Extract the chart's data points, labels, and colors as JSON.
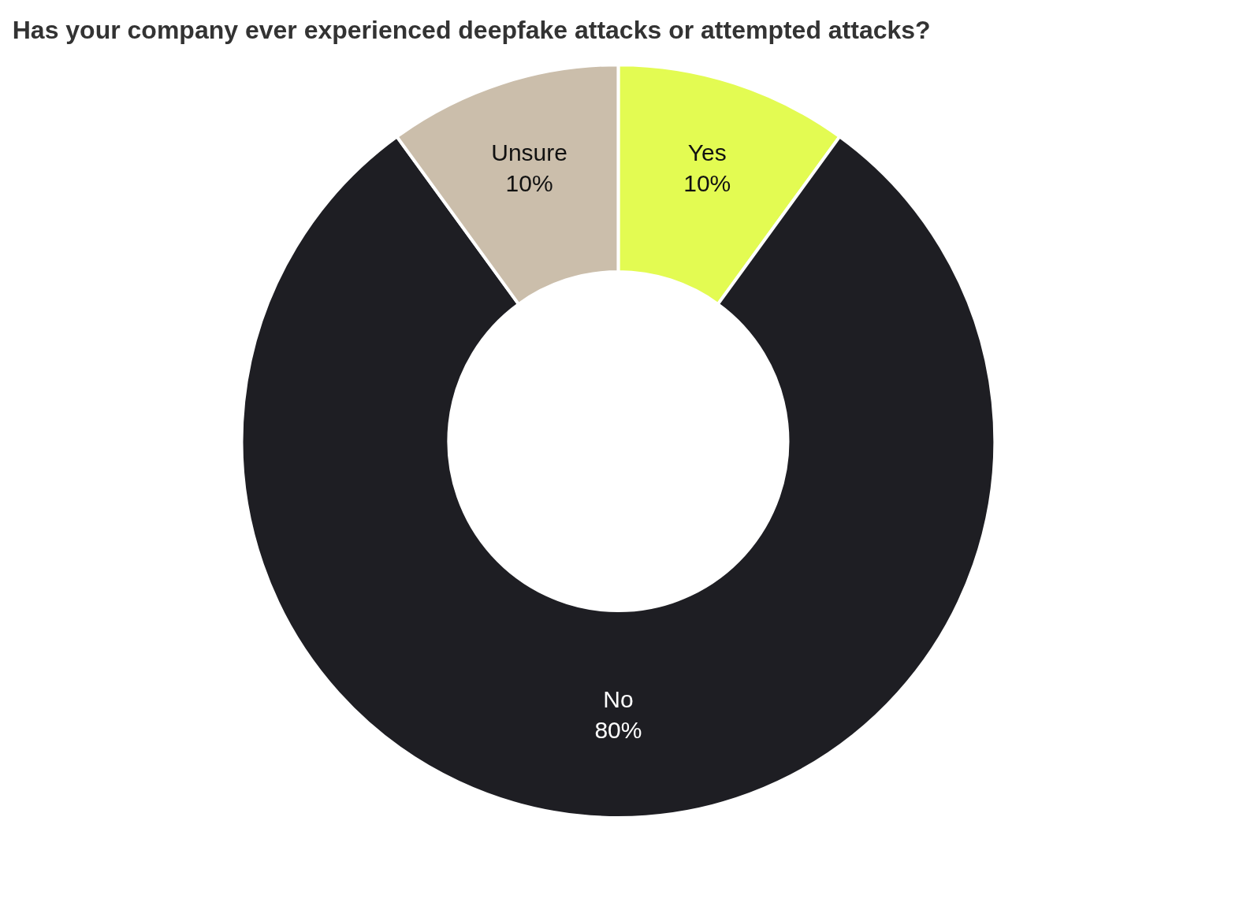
{
  "chart_data": {
    "type": "donut",
    "title": "Has your company ever experienced deepfake attacks or attempted attacks?",
    "categories": [
      "Yes",
      "No",
      "Unsure"
    ],
    "values": [
      10,
      80,
      10
    ],
    "value_labels": [
      "10%",
      "80%",
      "10%"
    ],
    "colors": [
      "#e3fb52",
      "#1e1e23",
      "#cbbeab"
    ],
    "legend": false
  }
}
